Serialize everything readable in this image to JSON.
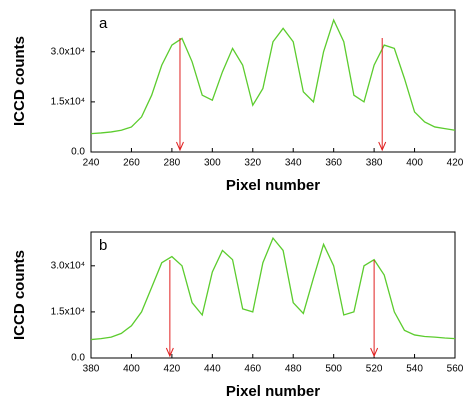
{
  "chart_data": [
    {
      "type": "line",
      "panel_label": "a",
      "xlabel": "Pixel number",
      "ylabel": "ICCD counts",
      "color": "#5ccc2e",
      "arrow_color": "#e02020",
      "x": [
        240,
        245,
        250,
        255,
        260,
        265,
        270,
        275,
        280,
        285,
        290,
        295,
        300,
        305,
        310,
        315,
        320,
        325,
        330,
        335,
        340,
        345,
        350,
        355,
        360,
        365,
        370,
        375,
        380,
        385,
        390,
        395,
        400,
        405,
        410,
        415,
        420
      ],
      "values": [
        5500,
        5700,
        6000,
        6500,
        7500,
        10500,
        17000,
        26000,
        32000,
        34000,
        27000,
        17000,
        15500,
        24000,
        31000,
        26000,
        14000,
        19000,
        33000,
        37000,
        33000,
        18000,
        15000,
        30000,
        39500,
        33000,
        17000,
        15000,
        26000,
        32000,
        31000,
        22000,
        12000,
        9000,
        7500,
        7000,
        6500
      ],
      "arrows_x": [
        284,
        384
      ],
      "xlim": [
        240,
        420
      ],
      "xticks": [
        240,
        260,
        280,
        300,
        320,
        340,
        360,
        380,
        400,
        420
      ],
      "ylim": [
        0,
        42500
      ],
      "yticks": [
        {
          "value": 0,
          "label": "0.0"
        },
        {
          "value": 15000,
          "label": "1.5x10⁴"
        },
        {
          "value": 30000,
          "label": "3.0x10⁴"
        }
      ]
    },
    {
      "type": "line",
      "panel_label": "b",
      "xlabel": "Pixel number",
      "ylabel": "ICCD counts",
      "color": "#5ccc2e",
      "arrow_color": "#e02020",
      "x": [
        380,
        385,
        390,
        395,
        400,
        405,
        410,
        415,
        420,
        425,
        430,
        435,
        440,
        445,
        450,
        455,
        460,
        465,
        470,
        475,
        480,
        485,
        490,
        495,
        500,
        505,
        510,
        515,
        520,
        525,
        530,
        535,
        540,
        545,
        550,
        555,
        560
      ],
      "values": [
        6000,
        6300,
        6800,
        8000,
        10500,
        15000,
        23000,
        31000,
        33000,
        30000,
        18000,
        14000,
        28000,
        35000,
        32000,
        16000,
        15000,
        31000,
        39000,
        35000,
        18000,
        14500,
        26000,
        37000,
        30000,
        14000,
        15000,
        30000,
        32000,
        27000,
        15000,
        9000,
        7500,
        7000,
        6800,
        6500,
        6300
      ],
      "arrows_x": [
        419,
        520
      ],
      "xlim": [
        380,
        560
      ],
      "xticks": [
        380,
        400,
        420,
        440,
        460,
        480,
        500,
        520,
        540,
        560
      ],
      "ylim": [
        0,
        41000
      ],
      "yticks": [
        {
          "value": 0,
          "label": "0.0"
        },
        {
          "value": 15000,
          "label": "1.5x10⁴"
        },
        {
          "value": 30000,
          "label": "3.0x10⁴"
        }
      ]
    }
  ]
}
